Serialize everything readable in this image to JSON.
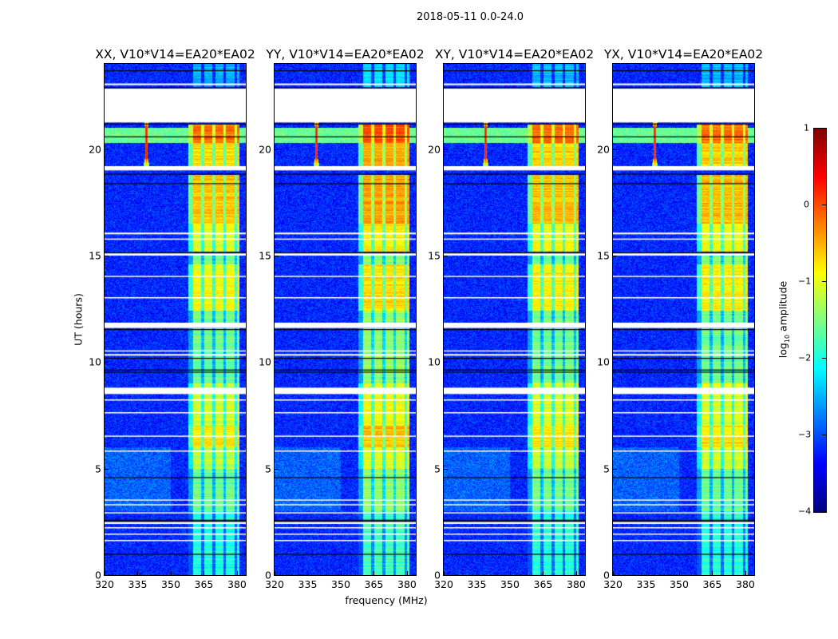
{
  "chart_data": {
    "type": "heatmap",
    "title": "2018-05-11 0.0-24.0",
    "xlabel": "frequency (MHz)",
    "ylabel": "UT (hours)",
    "xlim": [
      320,
      384
    ],
    "ylim": [
      0,
      24
    ],
    "xticks": [
      320,
      335,
      350,
      365,
      380
    ],
    "yticks": [
      0,
      5,
      10,
      15,
      20
    ],
    "colorbar": {
      "label_prefix": "log",
      "label_sub": "10",
      "label_suffix": " amplitude",
      "colormap": "jet",
      "range": [
        -4,
        1
      ],
      "ticks": [
        1,
        0,
        -1,
        -2,
        -3,
        -4
      ],
      "tick_labels": [
        "1",
        "0",
        "−1",
        "−2",
        "−3",
        "−4"
      ]
    },
    "panels": [
      {
        "title": "XX, V10*V14=EA20*EA02",
        "level_offset": 0.0
      },
      {
        "title": "YY, V10*V14=EA20*EA02",
        "level_offset": 0.2
      },
      {
        "title": "XY, V10*V14=EA20*EA02",
        "level_offset": 0.05
      },
      {
        "title": "YX, V10*V14=EA20*EA02",
        "level_offset": 0.05
      }
    ],
    "background_level": -3.2,
    "band_mhz": [
      360,
      381
    ],
    "band_subchannel_gaps_mhz": [
      364.5,
      369.5,
      374.5,
      379.5
    ],
    "band_level_by_hour": [
      [
        0,
        3,
        -2.0
      ],
      [
        3,
        5,
        -1.6
      ],
      [
        5,
        6,
        -1.2
      ],
      [
        6,
        7,
        -0.8
      ],
      [
        7,
        9,
        -1.1
      ],
      [
        9,
        11.6,
        -1.6
      ],
      [
        11.8,
        12.4,
        -1.6
      ],
      [
        12.4,
        14.6,
        -0.9
      ],
      [
        14.6,
        15.0,
        -1.6
      ],
      [
        15.2,
        16.5,
        -1.0
      ],
      [
        16.5,
        18.8,
        -0.6
      ],
      [
        19.2,
        20.3,
        -0.7
      ],
      [
        20.3,
        21.2,
        -0.2
      ],
      [
        22.9,
        24,
        -2.5
      ]
    ],
    "rfi_spike": {
      "freq_mhz": 339,
      "hours": [
        19.6,
        21.0
      ],
      "level": 0.3
    },
    "broadband_hours": [
      [
        20.3,
        21.0,
        -1.6
      ]
    ],
    "flagged_hours": [
      [
        21.25,
        22.85
      ],
      [
        19.0,
        19.2
      ],
      [
        11.6,
        11.85
      ],
      [
        8.5,
        8.8
      ],
      [
        15.0,
        15.12
      ],
      [
        16.0,
        16.08
      ],
      [
        15.75,
        15.8
      ],
      [
        14.0,
        14.05
      ],
      [
        13.0,
        13.05
      ],
      [
        10.3,
        10.38
      ],
      [
        10.5,
        10.55
      ],
      [
        8.2,
        8.25
      ],
      [
        7.6,
        7.65
      ],
      [
        6.5,
        6.55
      ],
      [
        5.8,
        5.85
      ],
      [
        3.5,
        3.55
      ],
      [
        3.3,
        3.33
      ],
      [
        2.9,
        2.95
      ],
      [
        2.4,
        2.5
      ],
      [
        2.2,
        2.25
      ],
      [
        1.9,
        1.95
      ],
      [
        1.6,
        1.65
      ],
      [
        23.0,
        23.08
      ]
    ],
    "black_line_hours": [
      22.9,
      21.2,
      18.85,
      18.4,
      15.15,
      11.55,
      10.2,
      9.65,
      9.55,
      4.6,
      2.6,
      2.55,
      1.0,
      23.7,
      20.6
    ]
  }
}
